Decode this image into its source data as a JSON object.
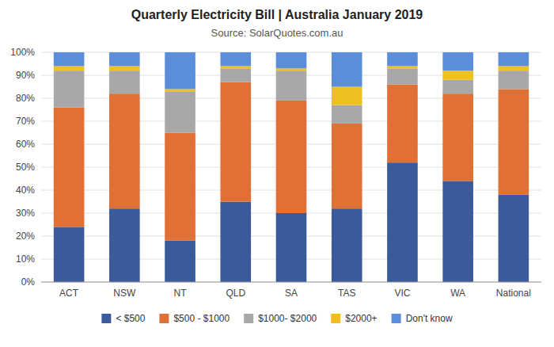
{
  "chart_data": {
    "type": "bar",
    "stacked": true,
    "title": "Quarterly Electricity Bill | Australia January 2019",
    "subtitle": "Source: SolarQuotes.com.au",
    "categories": [
      "ACT",
      "NSW",
      "NT",
      "QLD",
      "SA",
      "TAS",
      "VIC",
      "WA",
      "National"
    ],
    "series": [
      {
        "name": "< $500",
        "color": "#3A5A9B",
        "values": [
          24,
          32,
          18,
          35,
          30,
          32,
          52,
          44,
          38
        ]
      },
      {
        "name": "$500 - $1000",
        "color": "#E07035",
        "values": [
          52,
          50,
          47,
          52,
          49,
          37,
          34,
          38,
          46
        ]
      },
      {
        "name": "$1000- $2000",
        "color": "#A8A8A8",
        "values": [
          16,
          10,
          18,
          6,
          13,
          8,
          7,
          6,
          8
        ]
      },
      {
        "name": "$2000+",
        "color": "#F0C020",
        "values": [
          2,
          2,
          1,
          1,
          1,
          8,
          1,
          4,
          2
        ]
      },
      {
        "name": "Don't know",
        "color": "#5B8DD9",
        "values": [
          6,
          6,
          16,
          6,
          7,
          15,
          6,
          8,
          6
        ]
      }
    ],
    "ylim": [
      0,
      100
    ],
    "yticks": [
      {
        "value": 0,
        "label": "0%"
      },
      {
        "value": 10,
        "label": "10%"
      },
      {
        "value": 20,
        "label": "20%"
      },
      {
        "value": 30,
        "label": "30%"
      },
      {
        "value": 40,
        "label": "40%"
      },
      {
        "value": 50,
        "label": "50%"
      },
      {
        "value": 60,
        "label": "60%"
      },
      {
        "value": 70,
        "label": "70%"
      },
      {
        "value": 80,
        "label": "80%"
      },
      {
        "value": 90,
        "label": "90%"
      },
      {
        "value": 100,
        "label": "100%"
      }
    ],
    "grid": true,
    "legend": "bottom"
  }
}
